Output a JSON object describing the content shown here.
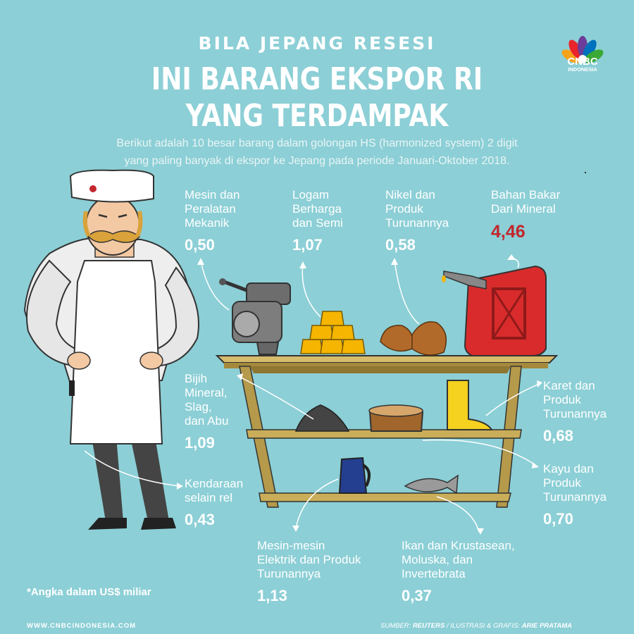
{
  "header": {
    "kicker": "BILA JEPANG RESESI",
    "title_line1": "INI BARANG EKSPOR RI",
    "title_line2": "YANG TERDAMPAK",
    "description_line1": "Berikut adalah 10 besar barang dalam golongan HS (harmonized system) 2 digit",
    "description_line2": "yang paling banyak di ekspor ke Jepang pada periode Januari-Oktober 2018."
  },
  "logo": {
    "name": "CNBC",
    "sub": "INDONESIA"
  },
  "items": [
    {
      "l1": "Mesin dan",
      "l2": "Peralatan",
      "l3": "Mekanik",
      "value": "0,50"
    },
    {
      "l1": "Logam",
      "l2": "Berharga",
      "l3": "dan Semi",
      "value": "1,07"
    },
    {
      "l1": "Nikel dan",
      "l2": "Produk",
      "l3": "Turunannya",
      "value": "0,58"
    },
    {
      "l1": "Bahan Bakar",
      "l2": "Dari Mineral",
      "value": "4,46",
      "highlight_color": "#c1272d"
    },
    {
      "l1": "Bijih",
      "l2": "Mineral,",
      "l3": "Slag,",
      "l4": "dan Abu",
      "value": "1,09"
    },
    {
      "l1": "Karet dan",
      "l2": "Produk",
      "l3": "Turunannya",
      "value": "0,68"
    },
    {
      "l1": "Kendaraan",
      "l2": "selain rel",
      "value": "0,43"
    },
    {
      "l1": "Kayu dan",
      "l2": "Produk",
      "l3": "Turunannya",
      "value": "0,70"
    },
    {
      "l1": "Mesin-mesin",
      "l2": "Elektrik dan Produk",
      "l3": "Turunannya",
      "value": "1,13"
    },
    {
      "l1": "Ikan dan Krustasean,",
      "l2": "Moluska, dan",
      "l3": "Invertebrata",
      "value": "0,37"
    }
  ],
  "note": "*Angka dalam US$ miliar",
  "footer": {
    "website": "WWW.CNBCINDONESIA.COM",
    "source_prefix": "SUMBER:",
    "source": "REUTERS",
    "credit_prefix": "/ ILUSTRASI & GRAFIS:",
    "credit": "ARIE PRATAMA"
  },
  "colors": {
    "background": "#8ccfd6",
    "highlight": "#c1272d",
    "shelf": "#b49a4a"
  }
}
